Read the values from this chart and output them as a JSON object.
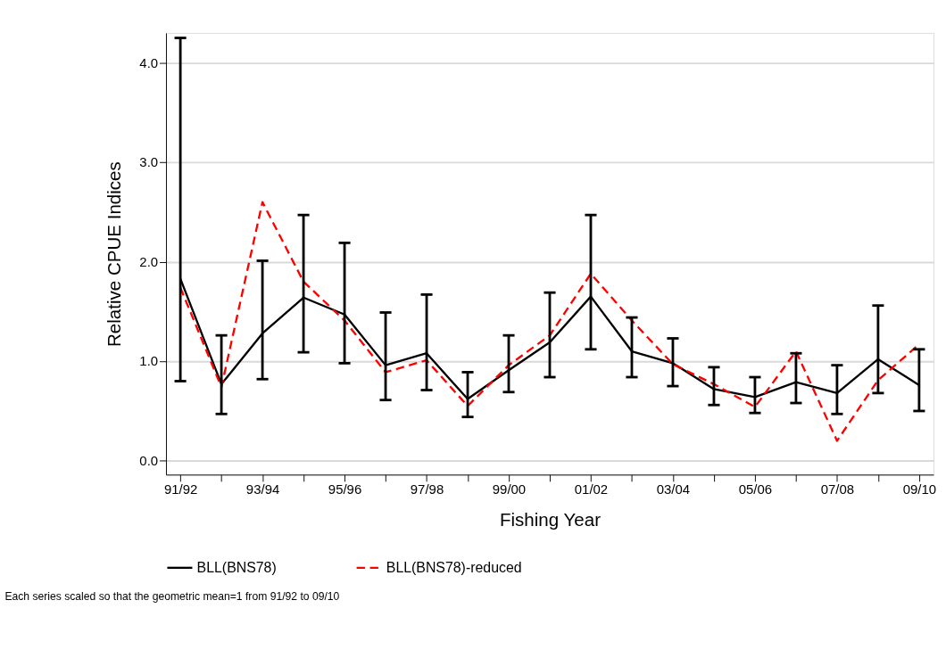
{
  "chart_data": {
    "type": "line",
    "xlabel": "Fishing Year",
    "ylabel": "Relative CPUE Indices",
    "categories": [
      "91/92",
      null,
      "93/94",
      null,
      "95/96",
      null,
      "97/98",
      null,
      "99/00",
      null,
      "01/02",
      null,
      "03/04",
      null,
      "05/06",
      null,
      "07/08",
      null,
      "09/10"
    ],
    "series": [
      {
        "name": "BLL(BNS78)",
        "color": "#000000",
        "line_style": "solid",
        "values": [
          1.83,
          0.77,
          1.28,
          1.64,
          1.47,
          0.96,
          1.08,
          0.62,
          0.91,
          1.19,
          1.65,
          1.1,
          0.98,
          0.72,
          0.64,
          0.79,
          0.68,
          1.02,
          0.76
        ],
        "errors": [
          [
            0.8,
            4.25
          ],
          [
            0.47,
            1.26
          ],
          [
            0.82,
            2.01
          ],
          [
            1.09,
            2.47
          ],
          [
            0.98,
            2.19
          ],
          [
            0.61,
            1.49
          ],
          [
            0.71,
            1.67
          ],
          [
            0.44,
            0.89
          ],
          [
            0.69,
            1.26
          ],
          [
            0.84,
            1.69
          ],
          [
            1.12,
            2.47
          ],
          [
            0.84,
            1.44
          ],
          [
            0.75,
            1.23
          ],
          [
            0.56,
            0.94
          ],
          [
            0.48,
            0.84
          ],
          [
            0.58,
            1.08
          ],
          [
            0.47,
            0.96
          ],
          [
            0.68,
            1.56
          ],
          [
            0.5,
            1.12
          ]
        ]
      },
      {
        "name": "BLL(BNS78)-reduced",
        "color": "#ff0000",
        "line_style": "dashed",
        "values": [
          1.74,
          0.74,
          2.6,
          1.8,
          1.41,
          0.89,
          1.01,
          0.55,
          0.96,
          1.26,
          1.88,
          1.41,
          0.97,
          0.77,
          0.54,
          1.1,
          0.2,
          0.81,
          1.17
        ]
      }
    ],
    "ylim": [
      -0.14,
      4.3
    ],
    "yticks": [
      {
        "value": 0,
        "label": "0.0"
      },
      {
        "value": 1,
        "label": "1.0"
      },
      {
        "value": 2,
        "label": "2.0"
      },
      {
        "value": 3,
        "label": "3.0"
      },
      {
        "value": 4,
        "label": "4.0"
      }
    ],
    "grid": "y",
    "legend": "bottom",
    "marker": "none",
    "annotations": [
      "Each series scaled so that the geometric mean=1 from 91/92 to 09/10"
    ]
  }
}
